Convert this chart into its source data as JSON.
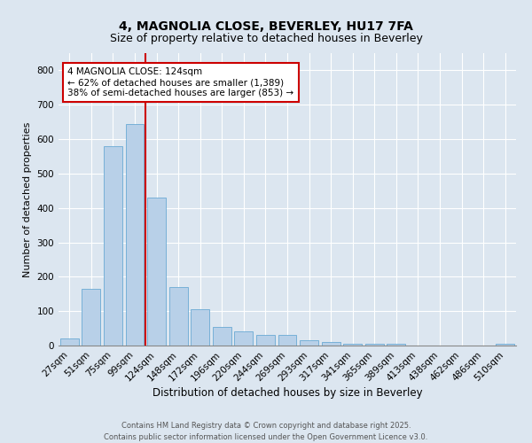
{
  "title1": "4, MAGNOLIA CLOSE, BEVERLEY, HU17 7FA",
  "title2": "Size of property relative to detached houses in Beverley",
  "xlabel": "Distribution of detached houses by size in Beverley",
  "ylabel": "Number of detached properties",
  "categories": [
    "27sqm",
    "51sqm",
    "75sqm",
    "99sqm",
    "124sqm",
    "148sqm",
    "172sqm",
    "196sqm",
    "220sqm",
    "244sqm",
    "269sqm",
    "293sqm",
    "317sqm",
    "341sqm",
    "365sqm",
    "389sqm",
    "413sqm",
    "438sqm",
    "462sqm",
    "486sqm",
    "510sqm"
  ],
  "values": [
    20,
    165,
    580,
    645,
    430,
    170,
    105,
    55,
    40,
    30,
    30,
    15,
    10,
    5,
    5,
    5,
    1,
    0,
    0,
    0,
    5
  ],
  "bar_color": "#b8d0e8",
  "bar_edge_color": "#6aaad4",
  "vline_x_index": 4,
  "vline_color": "#cc0000",
  "annotation_text": "4 MAGNOLIA CLOSE: 124sqm\n← 62% of detached houses are smaller (1,389)\n38% of semi-detached houses are larger (853) →",
  "annotation_box_color": "#ffffff",
  "annotation_box_edge_color": "#cc0000",
  "ylim": [
    0,
    850
  ],
  "yticks": [
    0,
    100,
    200,
    300,
    400,
    500,
    600,
    700,
    800
  ],
  "background_color": "#dce6f0",
  "grid_color": "#ffffff",
  "footer_text": "Contains HM Land Registry data © Crown copyright and database right 2025.\nContains public sector information licensed under the Open Government Licence v3.0.",
  "title1_fontsize": 10,
  "title2_fontsize": 9,
  "xlabel_fontsize": 8.5,
  "ylabel_fontsize": 8,
  "tick_fontsize": 7.5,
  "annotation_fontsize": 7.5,
  "footer_fontsize": 6
}
